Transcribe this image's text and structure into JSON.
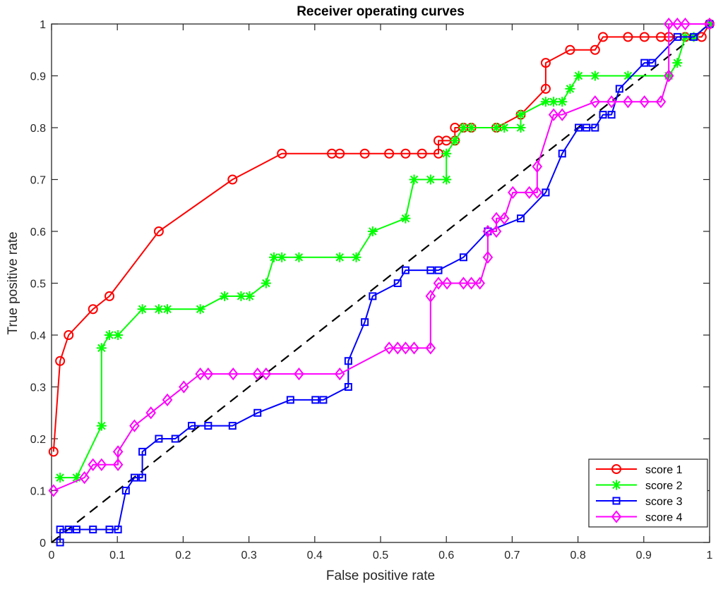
{
  "chart_data": {
    "type": "line",
    "title": "Receiver operating curves",
    "xlabel": "False positive rate",
    "ylabel": "True positive rate",
    "xlim": [
      0,
      1
    ],
    "ylim": [
      0,
      1
    ],
    "xticks": [
      "0",
      "0.1",
      "0.2",
      "0.3",
      "0.4",
      "0.5",
      "0.6",
      "0.7",
      "0.8",
      "0.9",
      "1"
    ],
    "yticks": [
      "0",
      "0.1",
      "0.2",
      "0.3",
      "0.4",
      "0.5",
      "0.6",
      "0.7",
      "0.8",
      "0.9",
      "1"
    ],
    "grid": false,
    "legend_position": "bottom-right",
    "diagonal": {
      "style": "dashed",
      "color": "#000000",
      "x": [
        0,
        1
      ],
      "y": [
        0,
        1
      ]
    },
    "series": [
      {
        "name": "score 1",
        "color": "#ff0000",
        "marker": "circle",
        "x": [
          0.003,
          0.013,
          0.026,
          0.063,
          0.088,
          0.163,
          0.275,
          0.35,
          0.426,
          0.438,
          0.476,
          0.513,
          0.538,
          0.563,
          0.588,
          0.588,
          0.6,
          0.613,
          0.613,
          0.626,
          0.638,
          0.676,
          0.713,
          0.751,
          0.751,
          0.788,
          0.826,
          0.838,
          0.876,
          0.901,
          0.926,
          0.938,
          0.963,
          0.988,
          1.0
        ],
        "y": [
          0.175,
          0.35,
          0.4,
          0.45,
          0.475,
          0.6,
          0.7,
          0.75,
          0.75,
          0.75,
          0.75,
          0.75,
          0.75,
          0.75,
          0.75,
          0.775,
          0.775,
          0.775,
          0.8,
          0.8,
          0.8,
          0.8,
          0.825,
          0.875,
          0.925,
          0.95,
          0.95,
          0.975,
          0.975,
          0.975,
          0.975,
          0.975,
          0.975,
          0.975,
          1.0
        ]
      },
      {
        "name": "score 2",
        "color": "#00ff00",
        "marker": "asterisk",
        "x": [
          0.013,
          0.038,
          0.076,
          0.076,
          0.088,
          0.101,
          0.138,
          0.163,
          0.176,
          0.226,
          0.263,
          0.288,
          0.301,
          0.326,
          0.338,
          0.35,
          0.376,
          0.438,
          0.463,
          0.488,
          0.538,
          0.551,
          0.576,
          0.6,
          0.6,
          0.613,
          0.626,
          0.638,
          0.676,
          0.688,
          0.713,
          0.713,
          0.751,
          0.763,
          0.776,
          0.788,
          0.801,
          0.826,
          0.876,
          0.938,
          0.951,
          0.963,
          0.976,
          1.0
        ],
        "y": [
          0.125,
          0.125,
          0.225,
          0.375,
          0.4,
          0.4,
          0.45,
          0.45,
          0.45,
          0.45,
          0.475,
          0.475,
          0.475,
          0.5,
          0.55,
          0.55,
          0.55,
          0.55,
          0.55,
          0.6,
          0.625,
          0.7,
          0.7,
          0.7,
          0.75,
          0.775,
          0.8,
          0.8,
          0.8,
          0.8,
          0.8,
          0.825,
          0.85,
          0.85,
          0.85,
          0.875,
          0.9,
          0.9,
          0.9,
          0.9,
          0.925,
          0.975,
          0.975,
          1.0
        ]
      },
      {
        "name": "score 3",
        "color": "#0000ff",
        "marker": "square",
        "x": [
          0.013,
          0.013,
          0.026,
          0.038,
          0.063,
          0.088,
          0.101,
          0.113,
          0.126,
          0.138,
          0.138,
          0.163,
          0.188,
          0.213,
          0.238,
          0.275,
          0.313,
          0.363,
          0.401,
          0.413,
          0.451,
          0.451,
          0.476,
          0.488,
          0.526,
          0.538,
          0.576,
          0.588,
          0.626,
          0.663,
          0.713,
          0.751,
          0.776,
          0.801,
          0.813,
          0.826,
          0.838,
          0.851,
          0.863,
          0.901,
          0.913,
          0.951,
          0.976,
          1.0
        ],
        "y": [
          0.0,
          0.025,
          0.025,
          0.025,
          0.025,
          0.025,
          0.025,
          0.1,
          0.125,
          0.125,
          0.175,
          0.2,
          0.2,
          0.225,
          0.225,
          0.225,
          0.25,
          0.275,
          0.275,
          0.275,
          0.3,
          0.35,
          0.425,
          0.475,
          0.5,
          0.525,
          0.525,
          0.525,
          0.55,
          0.6,
          0.625,
          0.675,
          0.75,
          0.8,
          0.8,
          0.8,
          0.825,
          0.825,
          0.875,
          0.925,
          0.925,
          0.975,
          0.975,
          1.0
        ]
      },
      {
        "name": "score 4",
        "color": "#ff00ff",
        "marker": "diamond",
        "x": [
          0.003,
          0.05,
          0.063,
          0.076,
          0.101,
          0.101,
          0.126,
          0.151,
          0.176,
          0.201,
          0.226,
          0.238,
          0.276,
          0.313,
          0.326,
          0.376,
          0.438,
          0.513,
          0.526,
          0.538,
          0.551,
          0.576,
          0.576,
          0.588,
          0.601,
          0.626,
          0.638,
          0.651,
          0.663,
          0.663,
          0.676,
          0.676,
          0.688,
          0.701,
          0.726,
          0.738,
          0.738,
          0.763,
          0.776,
          0.826,
          0.851,
          0.876,
          0.901,
          0.926,
          0.938,
          0.938,
          0.951,
          0.963,
          1.0
        ],
        "y": [
          0.1,
          0.125,
          0.15,
          0.15,
          0.15,
          0.175,
          0.225,
          0.25,
          0.275,
          0.3,
          0.325,
          0.325,
          0.325,
          0.325,
          0.325,
          0.325,
          0.325,
          0.375,
          0.375,
          0.375,
          0.375,
          0.375,
          0.475,
          0.5,
          0.5,
          0.5,
          0.5,
          0.5,
          0.55,
          0.6,
          0.6,
          0.625,
          0.625,
          0.675,
          0.675,
          0.675,
          0.725,
          0.825,
          0.825,
          0.85,
          0.85,
          0.85,
          0.85,
          0.85,
          0.9,
          1.0,
          1.0,
          1.0,
          1.0
        ]
      }
    ]
  }
}
